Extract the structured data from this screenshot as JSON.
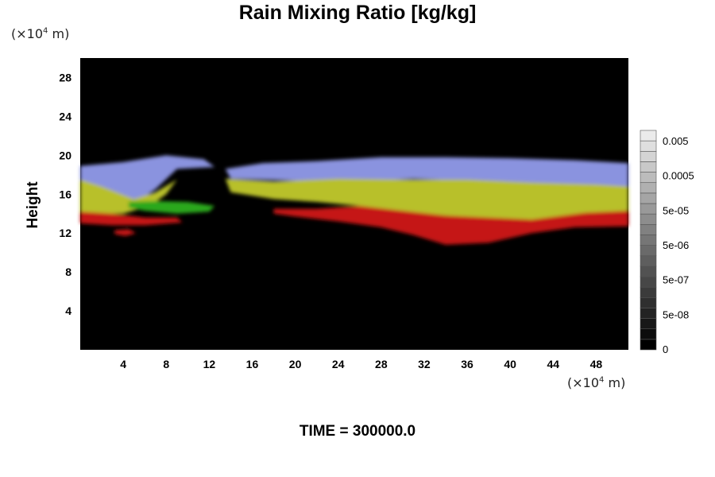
{
  "chart_data": {
    "type": "heatmap",
    "title": "Rain Mixing Ratio [kg/kg]",
    "ylabel": "Height",
    "y_unit": "(×10⁴ m)",
    "x_unit": "(×10⁴ m)",
    "xlim": [
      0,
      51
    ],
    "ylim": [
      0,
      30
    ],
    "x_ticks": [
      4,
      8,
      12,
      16,
      20,
      24,
      28,
      32,
      36,
      40,
      44,
      48
    ],
    "y_ticks": [
      4,
      8,
      12,
      16,
      20,
      24,
      28
    ],
    "colorbar": {
      "labels": [
        "0",
        "5e-08",
        "5e-07",
        "5e-06",
        "5e-05",
        "0.0005",
        "0.005"
      ],
      "levels": 21
    },
    "layers": [
      {
        "name": "blue",
        "color": "#8a93df",
        "points": [
          [
            0,
            18.9
          ],
          [
            4,
            19.3
          ],
          [
            8,
            20
          ],
          [
            11.5,
            19.6
          ],
          [
            12.5,
            18.8
          ],
          [
            9,
            18.6
          ],
          [
            7,
            16.5
          ],
          [
            5,
            15
          ],
          [
            2,
            16.5
          ],
          [
            0,
            17.2
          ]
        ]
      },
      {
        "name": "blue",
        "color": "#8a93df",
        "points": [
          [
            13.5,
            18.6
          ],
          [
            17,
            19.2
          ],
          [
            22,
            19.4
          ],
          [
            28,
            19.8
          ],
          [
            34,
            19.8
          ],
          [
            40,
            19.7
          ],
          [
            46,
            19.5
          ],
          [
            51,
            19.2
          ],
          [
            51,
            16.5
          ],
          [
            48,
            16.8
          ],
          [
            44,
            17
          ],
          [
            40,
            17.2
          ],
          [
            36,
            17.4
          ],
          [
            31,
            17.6
          ],
          [
            26,
            17.3
          ],
          [
            20,
            17.4
          ],
          [
            14,
            17.6
          ]
        ]
      },
      {
        "name": "yellow",
        "color": "#b8c02a",
        "points": [
          [
            0,
            17.5
          ],
          [
            2,
            16.8
          ],
          [
            5,
            15.5
          ],
          [
            7,
            16.2
          ],
          [
            9,
            17.5
          ],
          [
            8,
            16
          ],
          [
            6.5,
            14.8
          ],
          [
            4,
            14
          ],
          [
            1.5,
            14
          ],
          [
            0,
            14
          ]
        ]
      },
      {
        "name": "yellow",
        "color": "#b8c02a",
        "points": [
          [
            13.5,
            17.6
          ],
          [
            18,
            17.3
          ],
          [
            24,
            17.6
          ],
          [
            30,
            17.5
          ],
          [
            36,
            17.5
          ],
          [
            42,
            17.2
          ],
          [
            48,
            17
          ],
          [
            51,
            16.8
          ],
          [
            51,
            14.3
          ],
          [
            47,
            14
          ],
          [
            42,
            13.2
          ],
          [
            38,
            13.5
          ],
          [
            34,
            13.8
          ],
          [
            30,
            14.2
          ],
          [
            26,
            14.8
          ],
          [
            22,
            15.2
          ],
          [
            18,
            15.5
          ],
          [
            14,
            16.2
          ]
        ]
      },
      {
        "name": "green",
        "color": "#2ca81a",
        "points": [
          [
            4.5,
            15.2
          ],
          [
            7,
            15.3
          ],
          [
            10,
            15.2
          ],
          [
            12.5,
            14.8
          ],
          [
            12,
            14.2
          ],
          [
            9,
            14
          ],
          [
            6,
            14.3
          ],
          [
            4.5,
            14.6
          ]
        ]
      },
      {
        "name": "red",
        "color": "#c51414",
        "points": [
          [
            0,
            14.2
          ],
          [
            3,
            14
          ],
          [
            6,
            13.6
          ],
          [
            9,
            13.6
          ],
          [
            9.5,
            13.1
          ],
          [
            6,
            12.8
          ],
          [
            3,
            12.8
          ],
          [
            0,
            13
          ]
        ]
      },
      {
        "name": "red",
        "color": "#c51414",
        "points": [
          [
            3.2,
            12.3
          ],
          [
            4.5,
            12.4
          ],
          [
            5.2,
            12
          ],
          [
            4.2,
            11.7
          ],
          [
            3.2,
            11.9
          ]
        ]
      },
      {
        "name": "red",
        "color": "#c51414",
        "points": [
          [
            18,
            14.5
          ],
          [
            22,
            14.5
          ],
          [
            26,
            14.8
          ],
          [
            30,
            14.3
          ],
          [
            34,
            13.8
          ],
          [
            38,
            13.6
          ],
          [
            42,
            13.4
          ],
          [
            47,
            14.1
          ],
          [
            51,
            14.3
          ],
          [
            51,
            12.7
          ],
          [
            46,
            12.6
          ],
          [
            42,
            12
          ],
          [
            38,
            11
          ],
          [
            34,
            10.8
          ],
          [
            31,
            11.8
          ],
          [
            28,
            12.6
          ],
          [
            24,
            13.2
          ],
          [
            20,
            13.7
          ],
          [
            18,
            14
          ]
        ]
      }
    ]
  },
  "time_label": "TIME = 300000.0"
}
